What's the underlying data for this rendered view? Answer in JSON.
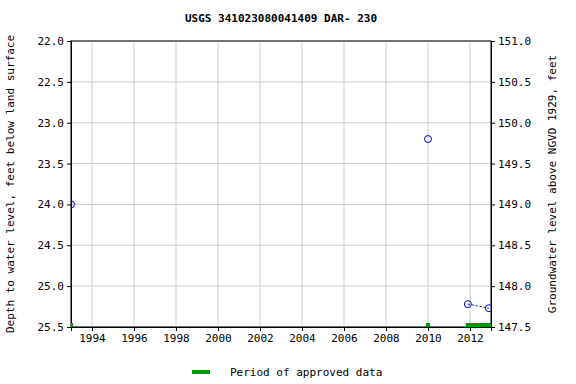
{
  "chart_data": {
    "type": "scatter",
    "title": "USGS 341023080041409 DAR- 230",
    "y_label": "Depth to water level, feet below land surface",
    "y2_label": "Groundwater level above NGVD 1929, feet",
    "xlim": [
      1993,
      2013
    ],
    "xticks": [
      1994,
      1996,
      1998,
      2000,
      2002,
      2004,
      2006,
      2008,
      2010,
      2012
    ],
    "ylim": [
      22.0,
      25.5
    ],
    "yticks": [
      {
        "value": 22,
        "label": "22.0"
      },
      22.5,
      {
        "value": 23,
        "label": "23.0"
      },
      23.5,
      {
        "value": 24,
        "label": "24.0"
      },
      24.5,
      {
        "value": 25,
        "label": "25.0"
      },
      25.5
    ],
    "y2lim": [
      151.0,
      147.5
    ],
    "y2ticks": [
      {
        "value": 151,
        "label": "151.0"
      },
      150.5,
      {
        "value": 150,
        "label": "150.0"
      },
      149.5,
      {
        "value": 149,
        "label": "149.0"
      },
      148.5,
      {
        "value": 148,
        "label": "148.0"
      },
      147.5
    ],
    "grid": true,
    "series": [
      {
        "color": "#0000cc",
        "marker": "circle",
        "line_style": "dotted",
        "x": [
          1993.0,
          null,
          2010.0,
          null,
          2011.9,
          2012.9
        ],
        "values": [
          24.0,
          null,
          23.2,
          null,
          25.22,
          25.27
        ]
      }
    ],
    "approved_periods": {
      "name": "Period of approved data",
      "color": "#009900",
      "start": [
        1992.95,
        2009.9,
        2011.8
      ],
      "end": [
        1993.1,
        2010.1,
        2013.0
      ]
    }
  }
}
